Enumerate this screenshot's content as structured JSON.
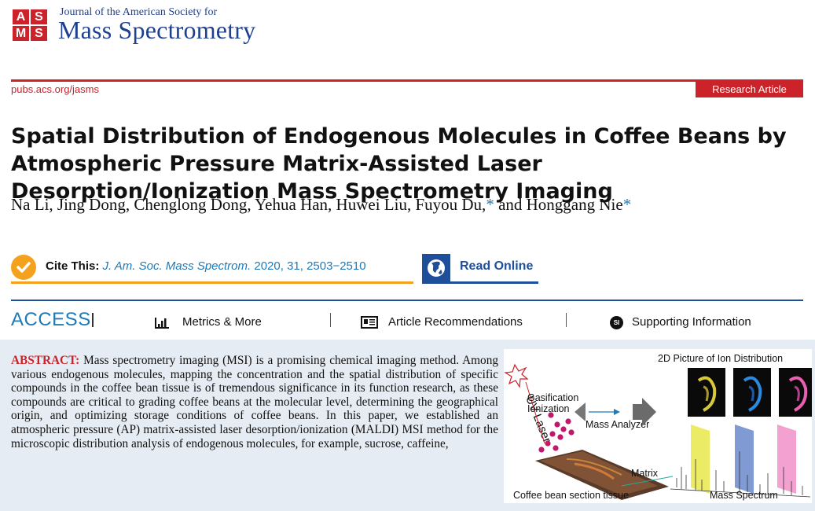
{
  "journal": {
    "logo_letters": [
      "A",
      "S",
      "M",
      "S"
    ],
    "subtitle": "Journal of the American Society for",
    "name": "Mass Spectrometry"
  },
  "meta": {
    "url": "pubs.acs.org/jasms",
    "article_type": "Research Article"
  },
  "article": {
    "title": "Spatial Distribution of Endogenous Molecules in Coffee Beans by Atmospheric Pressure Matrix-Assisted Laser Desorption/Ionization Mass Spectrometry Imaging",
    "authors_main": "Na Li, Jing Dong, Chenglong Dong, Yehua Han, Huwei Liu, Fuyou Du,",
    "authors_star": "*",
    "authors_tail": " and Honggang Nie",
    "authors_star2": "*"
  },
  "cite": {
    "label": "Cite This:",
    "journal": "J. Am. Soc. Mass Spectrom.",
    "details": "2020, 31, 2503−2510",
    "read_online": "Read Online"
  },
  "access": {
    "label": "ACCESS",
    "metrics": "Metrics & More",
    "recommendations": "Article Recommendations",
    "supporting": "Supporting Information",
    "si_badge": "SI"
  },
  "abstract": {
    "heading": "ABSTRACT:",
    "body": "Mass spectrometry imaging (MSI) is a promising chemical imaging method. Among various endogenous molecules, mapping the concentration and the spatial distribution of specific compounds in the coffee bean tissue is of tremendous significance in its function research, as these compounds are critical to grading coffee beans at the molecular level, determining the geographical origin, and optimizing storage conditions of coffee beans. In this paper, we established an atmospheric pressure (AP) matrix-assisted laser desorption/ionization (MALDI) MSI method for the microscopic distribution analysis of endogenous molecules, for example, sucrose, caffeine,"
  },
  "toc": {
    "ion_title": "2D Picture of Ion Distribution",
    "laser": "UV Laser",
    "gas": "Gasification",
    "ion": "Ionization",
    "analyzer": "Mass Analyzer",
    "matrix": "Matrix",
    "tissue": "Coffee bean section tissue",
    "spectrum": "Mass Spectrum"
  },
  "colors": {
    "brand_red": "#cc2229",
    "journal_blue": "#1f3f8f",
    "link_blue": "#1f7ab8",
    "cite_orange": "#f4a21e",
    "abstract_bg": "#e6ecf3"
  }
}
